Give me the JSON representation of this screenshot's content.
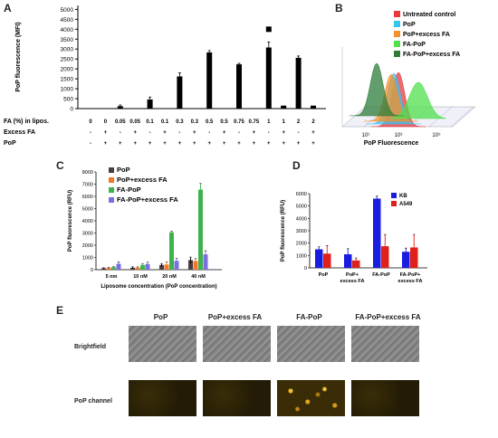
{
  "panels": {
    "A": {
      "letter": "A"
    },
    "B": {
      "letter": "B"
    },
    "C": {
      "letter": "C"
    },
    "D": {
      "letter": "D"
    },
    "E": {
      "letter": "E"
    }
  },
  "chart_data": [
    {
      "panel": "A",
      "type": "bar",
      "ylabel": "PoP fluorescence (MFI)",
      "yticks": [
        0,
        500,
        1000,
        1500,
        2000,
        2500,
        3000,
        3500,
        4000,
        4500,
        5000
      ],
      "ylim": [
        0,
        5200
      ],
      "values": [
        5,
        5,
        120,
        5,
        460,
        5,
        1620,
        5,
        2830,
        5,
        2230,
        5,
        3080,
        150,
        2560,
        150
      ],
      "errors": [
        0,
        0,
        60,
        0,
        120,
        0,
        180,
        0,
        90,
        0,
        50,
        0,
        280,
        0,
        90,
        0
      ],
      "marker_index": 12,
      "rows": [
        {
          "label": "FA (%) in lipos.",
          "cells": [
            "0",
            "0",
            "0.05",
            "0.05",
            "0.1",
            "0.1",
            "0.3",
            "0.3",
            "0.5",
            "0.5",
            "0.75",
            "0.75",
            "1",
            "1",
            "2",
            "2"
          ]
        },
        {
          "label": "Excess FA",
          "cells": [
            "-",
            "+",
            "-",
            "+",
            "-",
            "+",
            "-",
            "+",
            "-",
            "+",
            "-",
            "+",
            "-",
            "+",
            "-",
            "+"
          ]
        },
        {
          "label": "PoP",
          "cells": [
            "-",
            "+",
            "+",
            "+",
            "+",
            "+",
            "+",
            "+",
            "+",
            "+",
            "+",
            "+",
            "+",
            "+",
            "+",
            "+"
          ]
        }
      ]
    },
    {
      "panel": "B",
      "type": "area",
      "xlabel": "PoP Fluorescence",
      "xticks": [
        "10⁰",
        "10¹",
        "10²",
        "10³",
        "10⁴",
        "10⁵"
      ],
      "series": [
        {
          "name": "Untreated control",
          "color": "#e8383d"
        },
        {
          "name": "PoP",
          "color": "#35c6f0"
        },
        {
          "name": "PoP+excess FA",
          "color": "#f2922b"
        },
        {
          "name": "FA-PoP",
          "color": "#4fe04c"
        },
        {
          "name": "FA-PoP+excess FA",
          "color": "#2e7d3a"
        }
      ]
    },
    {
      "panel": "C",
      "type": "bar",
      "ylabel": "PoP fluorescence (RFU)",
      "xlabel": "Liposome concentration (PoP concentration)",
      "categories": [
        "5 nm",
        "10 nM",
        "20 nM",
        "40 nM"
      ],
      "yticks": [
        0,
        1000,
        2000,
        3000,
        4000,
        5000,
        6000,
        7000,
        8000
      ],
      "ylim": [
        0,
        8000
      ],
      "series": [
        {
          "name": "PoP",
          "color": "#4a3b45",
          "values": [
            120,
            160,
            380,
            780
          ],
          "errors": [
            40,
            80,
            120,
            250
          ]
        },
        {
          "name": "PoP+excess FA",
          "color": "#f07a2a",
          "values": [
            150,
            170,
            420,
            700
          ],
          "errors": [
            50,
            60,
            200,
            200
          ]
        },
        {
          "name": "FA-PoP",
          "color": "#3fb24d",
          "values": [
            200,
            380,
            3050,
            6550
          ],
          "errors": [
            50,
            100,
            90,
            500
          ]
        },
        {
          "name": "FA-PoP+excess FA",
          "color": "#7b6fe0",
          "values": [
            480,
            460,
            720,
            1250
          ],
          "errors": [
            150,
            150,
            200,
            300
          ]
        }
      ]
    },
    {
      "panel": "D",
      "type": "bar",
      "ylabel": "PoP fluorescence (RFU)",
      "categories": [
        "PoP",
        "PoP+\nexcess FA",
        "FA-PoP",
        "FA-PoP+\nexcess FA"
      ],
      "category_lines": [
        [
          "PoP"
        ],
        [
          "PoP+",
          "excess FA"
        ],
        [
          "FA-PoP"
        ],
        [
          "FA-PoP+",
          "excess FA"
        ]
      ],
      "yticks": [
        0,
        1000,
        2000,
        3000,
        4000,
        5000,
        6000
      ],
      "ylim": [
        0,
        6000
      ],
      "series": [
        {
          "name": "KB",
          "color": "#1a1de0",
          "values": [
            1500,
            1100,
            5600,
            1300
          ],
          "errors": [
            200,
            450,
            200,
            300
          ]
        },
        {
          "name": "A549",
          "color": "#e0201a",
          "values": [
            1150,
            600,
            1750,
            1650
          ],
          "errors": [
            650,
            200,
            950,
            1050
          ]
        }
      ]
    }
  ],
  "panelE": {
    "columns": [
      "PoP",
      "PoP+excess FA",
      "FA-PoP",
      "FA-PoP+excess FA"
    ],
    "rows": [
      "Brightfield",
      "PoP channel"
    ]
  }
}
